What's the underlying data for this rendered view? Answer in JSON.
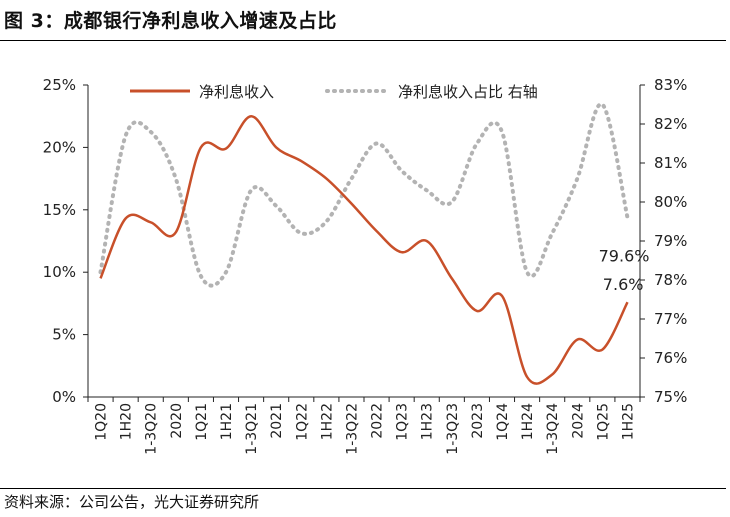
{
  "figure": {
    "title": "图 3：成都银行净利息收入增速及占比",
    "source": "资料来源：公司公告，光大证券研究所"
  },
  "chart_data": {
    "type": "line",
    "categories": [
      "1Q20",
      "1H20",
      "1-3Q20",
      "2020",
      "1Q21",
      "1H21",
      "1-3Q21",
      "2021",
      "1Q22",
      "1H22",
      "1-3Q22",
      "2022",
      "1Q23",
      "1H23",
      "1-3Q23",
      "2023",
      "1Q24",
      "1H24",
      "1-3Q24",
      "2024",
      "1Q25",
      "1H25"
    ],
    "y_left": {
      "min": 0,
      "max": 25,
      "ticks": [
        "0%",
        "5%",
        "10%",
        "15%",
        "20%",
        "25%"
      ],
      "tick_values": [
        0,
        5,
        10,
        15,
        20,
        25
      ]
    },
    "y_right": {
      "min": 75,
      "max": 83,
      "ticks": [
        "75%",
        "76%",
        "77%",
        "78%",
        "79%",
        "80%",
        "81%",
        "82%",
        "83%"
      ],
      "tick_values": [
        75,
        76,
        77,
        78,
        79,
        80,
        81,
        82,
        83
      ]
    },
    "series": [
      {
        "name": "净利息收入",
        "axis": "left",
        "style": "solid",
        "color": "#c8502a",
        "values": [
          9.5,
          14.3,
          14.0,
          13.2,
          20.0,
          19.9,
          22.5,
          20.0,
          18.9,
          17.5,
          15.5,
          13.3,
          11.6,
          12.5,
          9.5,
          6.9,
          8.1,
          1.6,
          1.8,
          4.6,
          3.8,
          7.6
        ]
      },
      {
        "name": "净利息收入占比 右轴",
        "axis": "right",
        "style": "dotted",
        "color": "#b3b3b3",
        "values": [
          78.2,
          81.7,
          81.8,
          80.6,
          78.1,
          78.2,
          80.3,
          79.9,
          79.2,
          79.5,
          80.6,
          81.5,
          80.8,
          80.3,
          80.0,
          81.5,
          81.8,
          78.2,
          79.2,
          80.6,
          82.5,
          79.6
        ]
      }
    ],
    "annotations": [
      {
        "text": "79.6%",
        "series": 1,
        "index": 21
      },
      {
        "text": "7.6%",
        "series": 0,
        "index": 21
      }
    ]
  }
}
